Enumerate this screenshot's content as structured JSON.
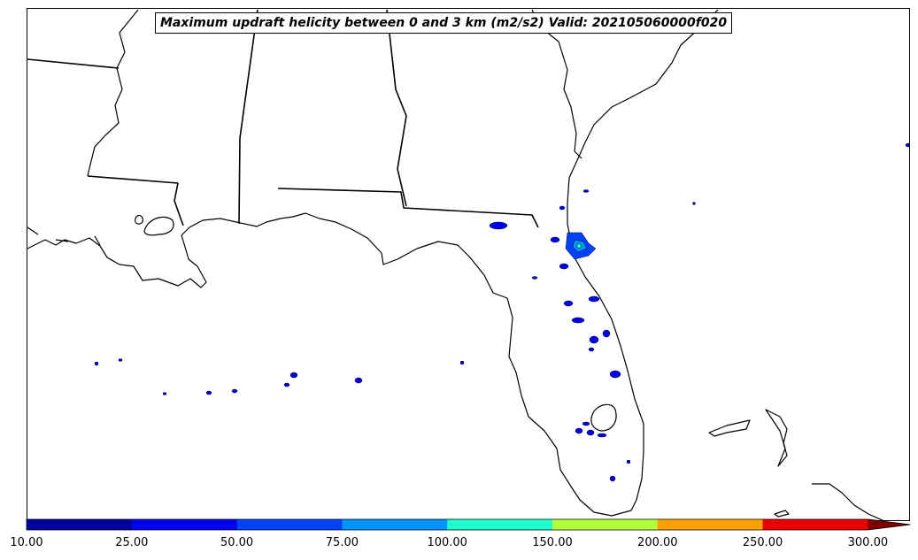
{
  "map": {
    "title": "Maximum updraft helicity between 0 and 3 km (m2/s2) Valid: 202105060000f020",
    "region": "Southeastern United States / Florida",
    "land_color": "#ffffff",
    "boundary_color": "#000000"
  },
  "colorbar": {
    "ticks": [
      "10.00",
      "25.00",
      "50.00",
      "75.00",
      "100.00",
      "150.00",
      "200.00",
      "250.00",
      "300.00"
    ],
    "colors": [
      "#00009c",
      "#0000f0",
      "#0040ff",
      "#0094ff",
      "#20ffd0",
      "#b4ff3c",
      "#ffa000",
      "#e80000"
    ],
    "extend_color": "#800000"
  }
}
